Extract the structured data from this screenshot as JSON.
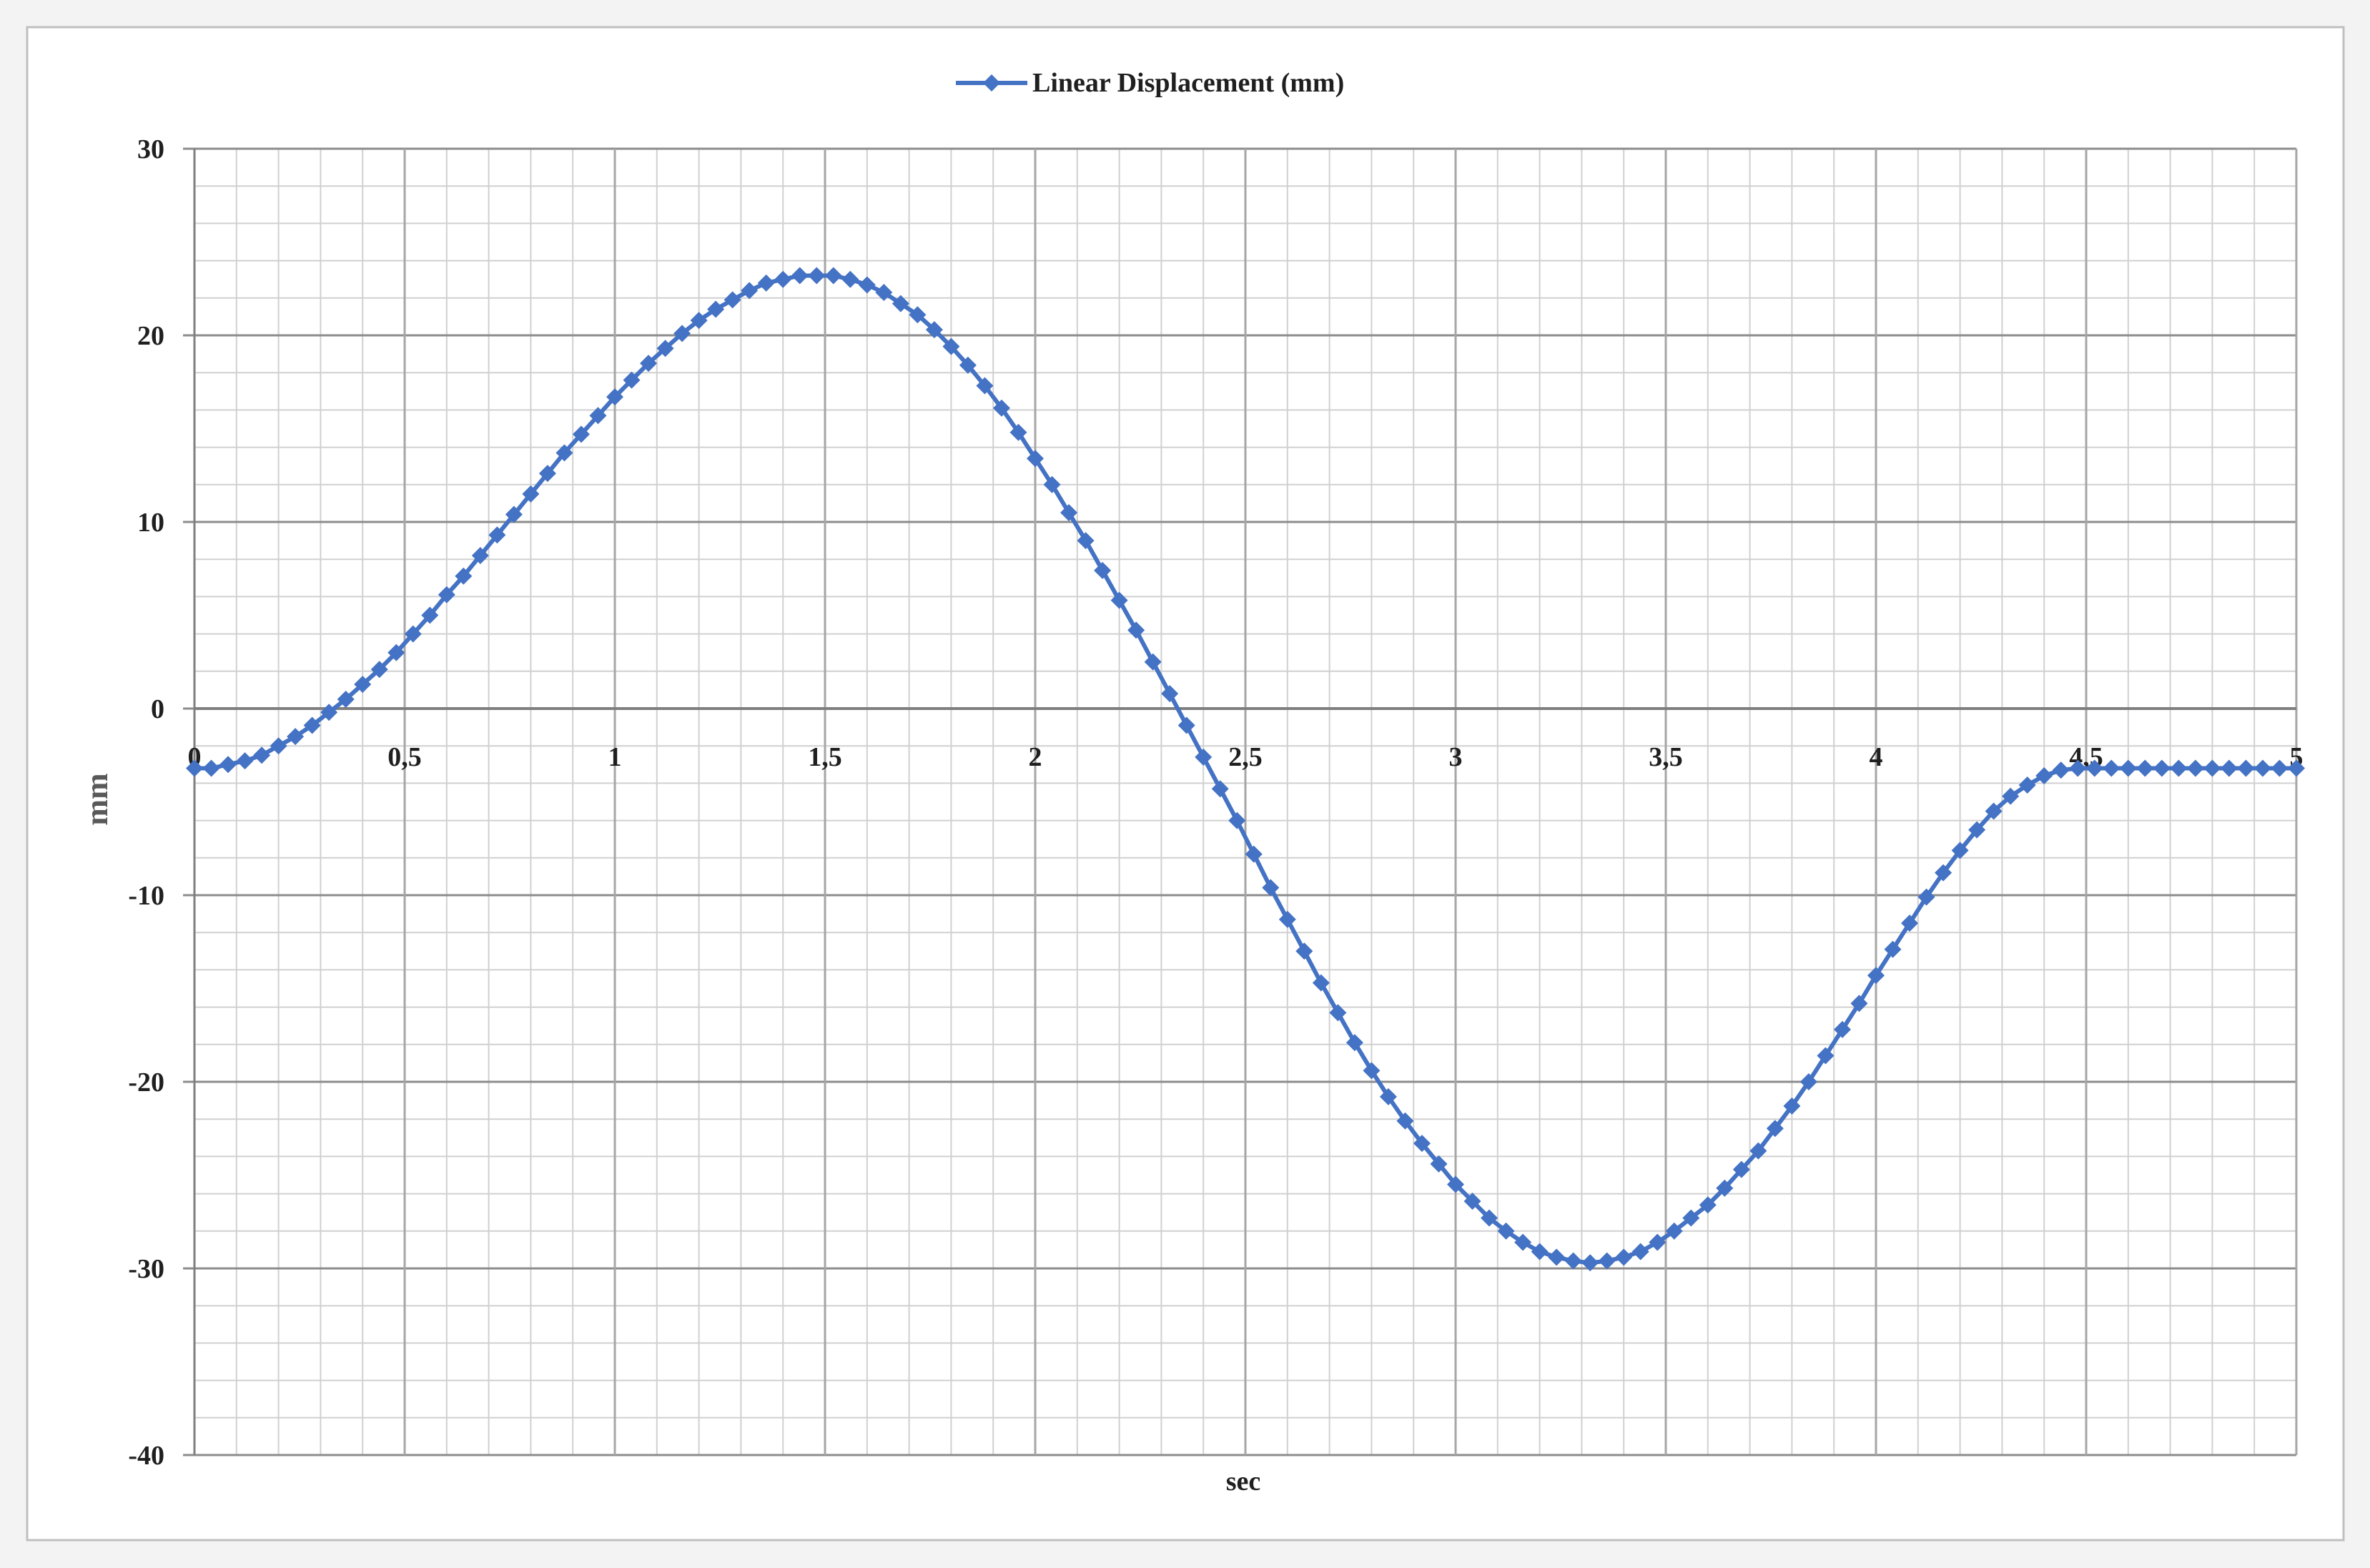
{
  "chart_data": {
    "type": "line",
    "title": "",
    "xlabel": "sec",
    "ylabel": "mm",
    "xlim": [
      0,
      5
    ],
    "ylim": [
      -40,
      30
    ],
    "grid": true,
    "legend_position": "top-center",
    "x_ticks": [
      "0",
      "0,5",
      "1",
      "1,5",
      "2",
      "2,5",
      "3",
      "3,5",
      "4",
      "4,5",
      "5"
    ],
    "x_tick_values": [
      0,
      0.5,
      1,
      1.5,
      2,
      2.5,
      3,
      3.5,
      4,
      4.5,
      5
    ],
    "y_ticks": [
      "30",
      "20",
      "10",
      "0",
      "-10",
      "-20",
      "-30",
      "-40"
    ],
    "y_tick_values": [
      30,
      20,
      10,
      0,
      -10,
      -20,
      -30,
      -40
    ],
    "series": [
      {
        "name": "Linear Displacement (mm)",
        "color": "#4472c4",
        "marker": "diamond",
        "x": [
          0.0,
          0.04,
          0.08,
          0.12,
          0.16,
          0.2,
          0.24,
          0.28,
          0.32,
          0.36,
          0.4,
          0.44,
          0.48,
          0.52,
          0.56,
          0.6,
          0.64,
          0.68,
          0.72,
          0.76,
          0.8,
          0.84,
          0.88,
          0.92,
          0.96,
          1.0,
          1.04,
          1.08,
          1.12,
          1.16,
          1.2,
          1.24,
          1.28,
          1.32,
          1.36,
          1.4,
          1.44,
          1.48,
          1.52,
          1.56,
          1.6,
          1.64,
          1.68,
          1.72,
          1.76,
          1.8,
          1.84,
          1.88,
          1.92,
          1.96,
          2.0,
          2.04,
          2.08,
          2.12,
          2.16,
          2.2,
          2.24,
          2.28,
          2.32,
          2.36,
          2.4,
          2.44,
          2.48,
          2.52,
          2.56,
          2.6,
          2.64,
          2.68,
          2.72,
          2.76,
          2.8,
          2.84,
          2.88,
          2.92,
          2.96,
          3.0,
          3.04,
          3.08,
          3.12,
          3.16,
          3.2,
          3.24,
          3.28,
          3.32,
          3.36,
          3.4,
          3.44,
          3.48,
          3.52,
          3.56,
          3.6,
          3.64,
          3.68,
          3.72,
          3.76,
          3.8,
          3.84,
          3.88,
          3.92,
          3.96,
          4.0,
          4.04,
          4.08,
          4.12,
          4.16,
          4.2,
          4.24,
          4.28,
          4.32,
          4.36,
          4.4,
          4.44,
          4.48,
          4.52,
          4.56,
          4.6,
          4.64,
          4.68,
          4.72,
          4.76,
          4.8,
          4.84,
          4.88,
          4.92,
          4.96,
          5.0
        ],
        "y": [
          -3.2,
          -3.2,
          -3.0,
          -2.8,
          -2.5,
          -2.0,
          -1.5,
          -0.9,
          -0.2,
          0.5,
          1.3,
          2.1,
          3.0,
          4.0,
          5.0,
          6.1,
          7.1,
          8.2,
          9.3,
          10.4,
          11.5,
          12.6,
          13.7,
          14.7,
          15.7,
          16.7,
          17.6,
          18.5,
          19.3,
          20.1,
          20.8,
          21.4,
          21.9,
          22.4,
          22.8,
          23.0,
          23.2,
          23.2,
          23.2,
          23.0,
          22.7,
          22.3,
          21.7,
          21.1,
          20.3,
          19.4,
          18.4,
          17.3,
          16.1,
          14.8,
          13.4,
          12.0,
          10.5,
          9.0,
          7.4,
          5.8,
          4.2,
          2.5,
          0.8,
          -0.9,
          -2.6,
          -4.3,
          -6.0,
          -7.8,
          -9.6,
          -11.3,
          -13.0,
          -14.7,
          -16.3,
          -17.9,
          -19.4,
          -20.8,
          -22.1,
          -23.3,
          -24.4,
          -25.5,
          -26.4,
          -27.3,
          -28.0,
          -28.6,
          -29.1,
          -29.4,
          -29.6,
          -29.7,
          -29.6,
          -29.4,
          -29.1,
          -28.6,
          -28.0,
          -27.3,
          -26.6,
          -25.7,
          -24.7,
          -23.7,
          -22.5,
          -21.3,
          -20.0,
          -18.6,
          -17.2,
          -15.8,
          -14.3,
          -12.9,
          -11.5,
          -10.1,
          -8.8,
          -7.6,
          -6.5,
          -5.5,
          -4.7,
          -4.1,
          -3.6,
          -3.3,
          -3.2,
          -3.2,
          -3.2,
          -3.2,
          -3.2,
          -3.2,
          -3.2,
          -3.2,
          -3.2,
          -3.2,
          -3.2,
          -3.2,
          -3.2,
          -3.2
        ]
      }
    ]
  }
}
